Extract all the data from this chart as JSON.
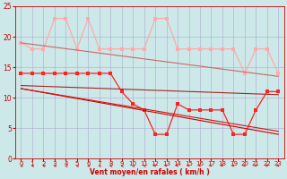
{
  "bg_color": "#cce8e8",
  "grid_color": "#aaaacc",
  "xlabel": "Vent moyen/en rafales ( km/h )",
  "xlim": [
    -0.5,
    23.5
  ],
  "ylim": [
    0,
    25
  ],
  "yticks": [
    0,
    5,
    10,
    15,
    20,
    25
  ],
  "xticks": [
    0,
    1,
    2,
    3,
    4,
    5,
    6,
    7,
    8,
    9,
    10,
    11,
    12,
    13,
    14,
    15,
    16,
    17,
    18,
    19,
    20,
    21,
    22,
    23
  ],
  "line_gust": {
    "x": [
      0,
      1,
      2,
      3,
      4,
      5,
      6,
      7,
      8,
      9,
      10,
      11,
      12,
      13,
      14,
      15,
      16,
      17,
      18,
      19,
      20,
      21,
      22,
      23
    ],
    "y": [
      19,
      18,
      18,
      23,
      23,
      18,
      23,
      18,
      18,
      18,
      18,
      18,
      23,
      23,
      18,
      18,
      18,
      18,
      18,
      18,
      14,
      18,
      18,
      14
    ],
    "color": "#ffaaaa",
    "lw": 0.9,
    "ms": 2.5
  },
  "line_mean": {
    "x": [
      0,
      1,
      2,
      3,
      4,
      5,
      6,
      7,
      8,
      9,
      10,
      11,
      12,
      13,
      14,
      15,
      16,
      17,
      18,
      19,
      20,
      21,
      22,
      23
    ],
    "y": [
      14,
      14,
      14,
      14,
      14,
      14,
      14,
      14,
      14,
      11,
      9,
      8,
      4,
      4,
      9,
      8,
      8,
      8,
      8,
      4,
      4,
      8,
      11,
      11
    ],
    "color": "#ff2222",
    "lw": 0.9,
    "ms": 2.5
  },
  "line_trend_gust": {
    "x": [
      0,
      23
    ],
    "y": [
      19.0,
      13.5
    ],
    "color": "#cc6666",
    "lw": 0.8
  },
  "line_trend_mean1": {
    "x": [
      0,
      23
    ],
    "y": [
      12.0,
      10.5
    ],
    "color": "#aa2222",
    "lw": 0.8
  },
  "line_trend_mean2": {
    "x": [
      0,
      23
    ],
    "y": [
      11.5,
      4.0
    ],
    "color": "#cc0000",
    "lw": 0.8
  },
  "line_trend_mean3": {
    "x": [
      0,
      23
    ],
    "y": [
      11.5,
      4.5
    ],
    "color": "#dd1111",
    "lw": 0.8
  },
  "arrow_color": "#dd2222",
  "wind_dir_left": [
    0,
    1,
    2,
    3,
    4,
    5,
    6,
    7,
    8,
    9,
    10,
    11
  ],
  "wind_dir_diag": [
    12,
    13,
    14,
    15,
    16,
    17,
    18,
    19,
    20,
    21,
    22,
    23
  ]
}
